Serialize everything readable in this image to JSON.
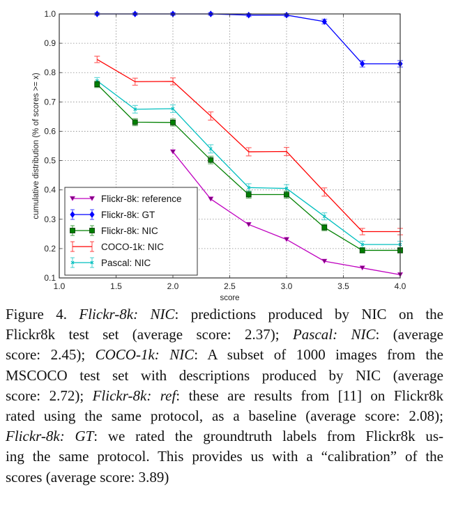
{
  "chart_data": {
    "type": "line",
    "title": "",
    "xlabel": "score",
    "ylabel": "cumulative distribution (% of scores >= x)",
    "xlim": [
      1.0,
      4.0
    ],
    "ylim": [
      0.1,
      1.0
    ],
    "xticks": [
      1.0,
      1.5,
      2.0,
      2.5,
      3.0,
      3.5,
      4.0
    ],
    "xtick_labels": [
      "1.0",
      "1.5",
      "2.0",
      "2.5",
      "3.0",
      "3.5",
      "4.0"
    ],
    "yticks": [
      0.1,
      0.2,
      0.3,
      0.4,
      0.5,
      0.6,
      0.7,
      0.8,
      0.9,
      1.0
    ],
    "ytick_labels": [
      "0.1",
      "0.2",
      "0.3",
      "0.4",
      "0.5",
      "0.6",
      "0.7",
      "0.8",
      "0.9",
      "1.0"
    ],
    "grid": true,
    "legend_position": "bottom-left",
    "series": [
      {
        "name": "Flickr-8k: reference",
        "color": "#bf00bf",
        "marker": "triangle-down",
        "error_bars": false,
        "x": [
          2.0,
          2.333,
          2.667,
          3.0,
          3.333,
          3.667,
          4.0
        ],
        "values": [
          0.53,
          0.369,
          0.282,
          0.231,
          0.157,
          0.134,
          0.111
        ]
      },
      {
        "name": "Flickr-8k: GT",
        "color": "#0000ff",
        "marker": "diamond",
        "error_bars": true,
        "x": [
          1.333,
          1.667,
          2.0,
          2.333,
          2.667,
          3.0,
          3.333,
          3.667,
          4.0
        ],
        "values": [
          1.0,
          1.0,
          1.0,
          1.0,
          0.996,
          0.996,
          0.974,
          0.83,
          0.83
        ],
        "errors": [
          0.004,
          0.004,
          0.004,
          0.004,
          0.005,
          0.005,
          0.008,
          0.011,
          0.011
        ]
      },
      {
        "name": "Flickr-8k: NIC",
        "color": "#008000",
        "marker": "square",
        "error_bars": true,
        "x": [
          1.333,
          1.667,
          2.0,
          2.333,
          2.667,
          3.0,
          3.333,
          3.667,
          4.0
        ],
        "values": [
          0.76,
          0.631,
          0.63,
          0.502,
          0.384,
          0.384,
          0.272,
          0.194,
          0.194
        ],
        "errors": [
          0.011,
          0.012,
          0.012,
          0.013,
          0.012,
          0.012,
          0.011,
          0.009,
          0.009
        ]
      },
      {
        "name": "COCO-1k: NIC",
        "color": "#ff0000",
        "marker": "none",
        "error_bars": true,
        "x": [
          1.333,
          1.667,
          2.0,
          2.333,
          2.667,
          3.0,
          3.333,
          3.667,
          4.0
        ],
        "values": [
          0.845,
          0.769,
          0.77,
          0.652,
          0.53,
          0.531,
          0.393,
          0.258,
          0.258
        ],
        "errors": [
          0.011,
          0.012,
          0.012,
          0.014,
          0.014,
          0.014,
          0.014,
          0.011,
          0.011
        ]
      },
      {
        "name": "Pascal: NIC",
        "color": "#00bfbf",
        "marker": "x",
        "error_bars": true,
        "x": [
          1.333,
          1.667,
          2.0,
          2.333,
          2.667,
          3.0,
          3.333,
          3.667,
          4.0
        ],
        "values": [
          0.772,
          0.675,
          0.677,
          0.54,
          0.408,
          0.405,
          0.31,
          0.214,
          0.214
        ],
        "errors": [
          0.011,
          0.013,
          0.013,
          0.014,
          0.013,
          0.013,
          0.012,
          0.011,
          0.011
        ]
      }
    ]
  },
  "caption": {
    "lines": [
      [
        {
          "t": "Figure 4.  ",
          "i": false
        },
        {
          "t": "Flickr-8k: NIC",
          "i": true
        },
        {
          "t": ": predictions produced by NIC on the",
          "i": false
        }
      ],
      [
        {
          "t": "Flickr8k test set (average score: 2.37); ",
          "i": false
        },
        {
          "t": "Pascal: NIC",
          "i": true
        },
        {
          "t": ": (average",
          "i": false
        }
      ],
      [
        {
          "t": "score: 2.45); ",
          "i": false
        },
        {
          "t": "COCO-1k: NIC",
          "i": true
        },
        {
          "t": ": A subset of 1000 images from the",
          "i": false
        }
      ],
      [
        {
          "t": "MSCOCO test set with descriptions produced by NIC (average",
          "i": false
        }
      ],
      [
        {
          "t": "score: 2.72); ",
          "i": false
        },
        {
          "t": "Flickr-8k: ref",
          "i": true
        },
        {
          "t": ": these are results from [11] on Flickr8k",
          "i": false
        }
      ],
      [
        {
          "t": "rated using the same protocol, as a baseline (average score: 2.08);",
          "i": false
        }
      ],
      [
        {
          "t": "Flickr-8k: GT",
          "i": true
        },
        {
          "t": ": we rated the groundtruth labels from Flickr8k us-",
          "i": false
        }
      ],
      [
        {
          "t": "ing the same protocol. This provides us with a “calibration” of the",
          "i": false
        }
      ],
      [
        {
          "t": "scores (average score: 3.89)",
          "i": false
        }
      ]
    ]
  }
}
